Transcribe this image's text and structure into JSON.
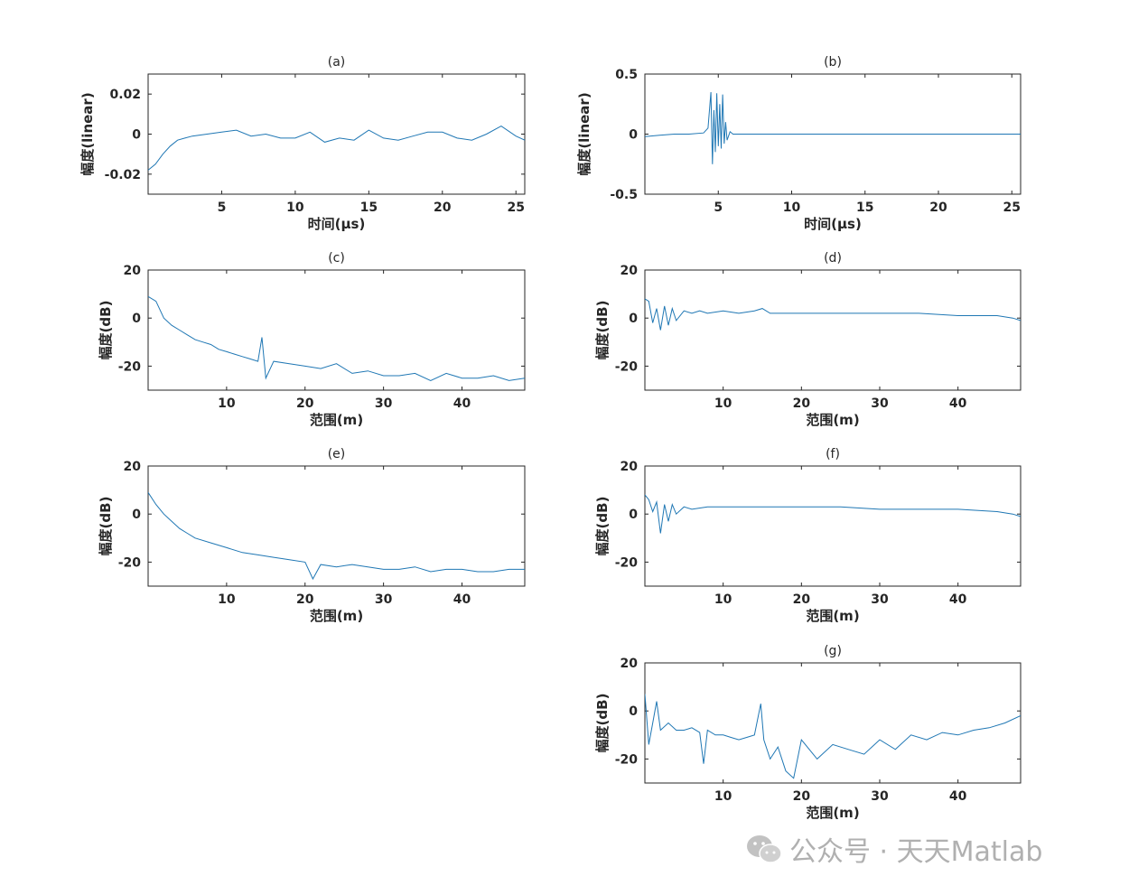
{
  "line_color": "#1f77b4",
  "watermark": {
    "text": "公众号 · 天天Matlab",
    "icon": "wechat-icon"
  },
  "chart_data": [
    {
      "id": "a",
      "type": "line",
      "title": "(a)",
      "xlabel": "时间(μs)",
      "ylabel": "幅度(linear)",
      "xlim": [
        0,
        25.6
      ],
      "ylim": [
        -0.03,
        0.03
      ],
      "xticks": [
        5,
        10,
        15,
        20,
        25
      ],
      "yticks": [
        -0.02,
        0,
        0.02
      ],
      "ytick_labels": [
        "-0.02",
        "0",
        "0.02"
      ],
      "series": [
        {
          "x": [
            0,
            0.5,
            1,
            1.5,
            2,
            2.5,
            3,
            4,
            5,
            6,
            7,
            8,
            9,
            10,
            11,
            12,
            13,
            14,
            15,
            16,
            17,
            18,
            19,
            20,
            21,
            22,
            23,
            24,
            25,
            25.6
          ],
          "y": [
            -0.018,
            -0.015,
            -0.01,
            -0.006,
            -0.003,
            -0.002,
            -0.001,
            0,
            0.001,
            0.002,
            -0.001,
            0,
            -0.002,
            -0.002,
            0.001,
            -0.004,
            -0.002,
            -0.003,
            0.002,
            -0.002,
            -0.003,
            -0.001,
            0.001,
            0.001,
            -0.002,
            -0.003,
            0,
            0.004,
            -0.001,
            -0.003
          ]
        }
      ]
    },
    {
      "id": "b",
      "type": "line",
      "title": "(b)",
      "xlabel": "时间(μs)",
      "ylabel": "幅度(linear)",
      "xlim": [
        0,
        25.6
      ],
      "ylim": [
        -0.5,
        0.5
      ],
      "xticks": [
        5,
        10,
        15,
        20,
        25
      ],
      "yticks": [
        -0.5,
        0,
        0.5
      ],
      "ytick_labels": [
        "-0.5",
        "0",
        "0.5"
      ],
      "series": [
        {
          "x": [
            0,
            1,
            2,
            3,
            4,
            4.3,
            4.5,
            4.6,
            4.7,
            4.8,
            4.9,
            5.0,
            5.1,
            5.2,
            5.3,
            5.4,
            5.5,
            5.6,
            5.8,
            6,
            7,
            10,
            15,
            20,
            25,
            25.6
          ],
          "y": [
            -0.02,
            -0.01,
            0,
            0,
            0.01,
            0.05,
            0.35,
            -0.25,
            0.2,
            -0.15,
            0.34,
            -0.1,
            0.25,
            -0.12,
            0.33,
            -0.08,
            0.1,
            -0.05,
            0.02,
            0,
            0,
            0,
            0,
            0,
            0,
            0
          ]
        }
      ]
    },
    {
      "id": "c",
      "type": "line",
      "title": "(c)",
      "xlabel": "范围(m)",
      "ylabel": "幅度(dB)",
      "xlim": [
        0,
        48
      ],
      "ylim": [
        -30,
        20
      ],
      "xticks": [
        10,
        20,
        30,
        40
      ],
      "yticks": [
        -20,
        0,
        20
      ],
      "ytick_labels": [
        "-20",
        "0",
        "20"
      ],
      "series": [
        {
          "x": [
            0,
            1,
            2,
            3,
            4,
            5,
            6,
            7,
            8,
            9,
            10,
            11,
            12,
            13,
            14,
            14.5,
            15,
            16,
            18,
            20,
            22,
            24,
            26,
            28,
            30,
            32,
            34,
            36,
            38,
            40,
            42,
            44,
            46,
            48
          ],
          "y": [
            9,
            7,
            0,
            -3,
            -5,
            -7,
            -9,
            -10,
            -11,
            -13,
            -14,
            -15,
            -16,
            -17,
            -18,
            -8,
            -25,
            -18,
            -19,
            -20,
            -21,
            -19,
            -23,
            -22,
            -24,
            -24,
            -23,
            -26,
            -23,
            -25,
            -25,
            -24,
            -26,
            -25
          ]
        }
      ]
    },
    {
      "id": "d",
      "type": "line",
      "title": "(d)",
      "xlabel": "范围(m)",
      "ylabel": "幅度(dB)",
      "xlim": [
        0,
        48
      ],
      "ylim": [
        -30,
        20
      ],
      "xticks": [
        10,
        20,
        30,
        40
      ],
      "yticks": [
        -20,
        0,
        20
      ],
      "ytick_labels": [
        "-20",
        "0",
        "20"
      ],
      "series": [
        {
          "x": [
            0,
            0.5,
            1,
            1.5,
            2,
            2.5,
            3,
            3.5,
            4,
            5,
            6,
            7,
            8,
            10,
            12,
            14,
            15,
            16,
            20,
            25,
            30,
            35,
            40,
            45,
            47,
            48
          ],
          "y": [
            8,
            7,
            -2,
            4,
            -5,
            5,
            -3,
            4,
            -1,
            3,
            2,
            3,
            2,
            3,
            2,
            3,
            4,
            2,
            2,
            2,
            2,
            2,
            1,
            1,
            0,
            -1
          ]
        }
      ]
    },
    {
      "id": "e",
      "type": "line",
      "title": "(e)",
      "xlabel": "范围(m)",
      "ylabel": "幅度(dB)",
      "xlim": [
        0,
        48
      ],
      "ylim": [
        -30,
        20
      ],
      "xticks": [
        10,
        20,
        30,
        40
      ],
      "yticks": [
        -20,
        0,
        20
      ],
      "ytick_labels": [
        "-20",
        "0",
        "20"
      ],
      "series": [
        {
          "x": [
            0,
            1,
            2,
            3,
            4,
            5,
            6,
            8,
            10,
            12,
            14,
            16,
            18,
            20,
            21,
            22,
            24,
            26,
            28,
            30,
            32,
            34,
            36,
            38,
            40,
            42,
            44,
            46,
            48
          ],
          "y": [
            9,
            4,
            0,
            -3,
            -6,
            -8,
            -10,
            -12,
            -14,
            -16,
            -17,
            -18,
            -19,
            -20,
            -27,
            -21,
            -22,
            -21,
            -22,
            -23,
            -23,
            -22,
            -24,
            -23,
            -23,
            -24,
            -24,
            -23,
            -23
          ]
        }
      ]
    },
    {
      "id": "f",
      "type": "line",
      "title": "(f)",
      "xlabel": "范围(m)",
      "ylabel": "幅度(dB)",
      "xlim": [
        0,
        48
      ],
      "ylim": [
        -30,
        20
      ],
      "xticks": [
        10,
        20,
        30,
        40
      ],
      "yticks": [
        -20,
        0,
        20
      ],
      "ytick_labels": [
        "-20",
        "0",
        "20"
      ],
      "series": [
        {
          "x": [
            0,
            0.5,
            1,
            1.5,
            2,
            2.5,
            3,
            3.5,
            4,
            5,
            6,
            8,
            10,
            15,
            20,
            25,
            30,
            35,
            40,
            45,
            47,
            48
          ],
          "y": [
            8,
            6,
            1,
            5,
            -8,
            4,
            -3,
            4,
            0,
            3,
            2,
            3,
            3,
            3,
            3,
            3,
            2,
            2,
            2,
            1,
            0,
            -1
          ]
        }
      ]
    },
    {
      "id": "g",
      "type": "line",
      "title": "(g)",
      "xlabel": "范围(m)",
      "ylabel": "幅度(dB)",
      "xlim": [
        0,
        48
      ],
      "ylim": [
        -30,
        20
      ],
      "xticks": [
        10,
        20,
        30,
        40
      ],
      "yticks": [
        -20,
        0,
        20
      ],
      "ytick_labels": [
        "-20",
        "0",
        "20"
      ],
      "series": [
        {
          "x": [
            0,
            0.5,
            1,
            1.5,
            2,
            3,
            4,
            5,
            6,
            7,
            7.5,
            8,
            9,
            10,
            11,
            12,
            13,
            14,
            14.8,
            15.2,
            16,
            17,
            18,
            19,
            20,
            22,
            24,
            26,
            28,
            30,
            32,
            34,
            36,
            38,
            40,
            42,
            44,
            46,
            48
          ],
          "y": [
            7,
            -14,
            -5,
            4,
            -8,
            -5,
            -8,
            -8,
            -7,
            -9,
            -22,
            -8,
            -10,
            -10,
            -11,
            -12,
            -11,
            -10,
            3,
            -12,
            -20,
            -15,
            -25,
            -28,
            -12,
            -20,
            -14,
            -16,
            -18,
            -12,
            -16,
            -10,
            -12,
            -9,
            -10,
            -8,
            -7,
            -5,
            -2
          ]
        }
      ]
    }
  ]
}
